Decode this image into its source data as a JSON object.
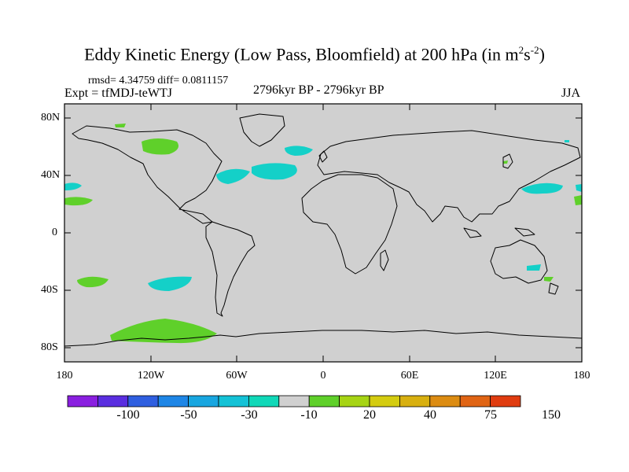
{
  "title_main": "Eddy Kinetic Energy (Low Pass, Bloomfield) at 200 hPa (in m",
  "title_sup1": "2",
  "title_mid": "s",
  "title_sup2": "-2",
  "title_end": ")",
  "rmsd_line": "rmsd= 4.34759 diff= 0.0811157",
  "expt_line": "Expt = tfMDJ-teWTJ",
  "period_line": "2796kyr BP - 2796kyr BP",
  "season": "JJA",
  "lat_labels": [
    "80N",
    "40N",
    "0",
    "40S",
    "80S"
  ],
  "lon_labels": [
    "180",
    "120W",
    "60W",
    "0",
    "60E",
    "120E",
    "180"
  ],
  "colorbar": {
    "colors": [
      "#8a1fe0",
      "#5a2ee0",
      "#2f5fe0",
      "#1e86e6",
      "#18a6e0",
      "#14c2d6",
      "#10d8b8",
      "#d0d0d0",
      "#5fd02a",
      "#a6d414",
      "#d4cc10",
      "#d8b010",
      "#dc8c12",
      "#e06414",
      "#e03c10"
    ],
    "labels": [
      "-100",
      "-50",
      "-30",
      "-10",
      "20",
      "40",
      "75",
      "150"
    ]
  },
  "map": {
    "ocean_color": "#d0d0d0",
    "positive_color": "#5fd02a",
    "negative_color": "#14d0c8"
  }
}
